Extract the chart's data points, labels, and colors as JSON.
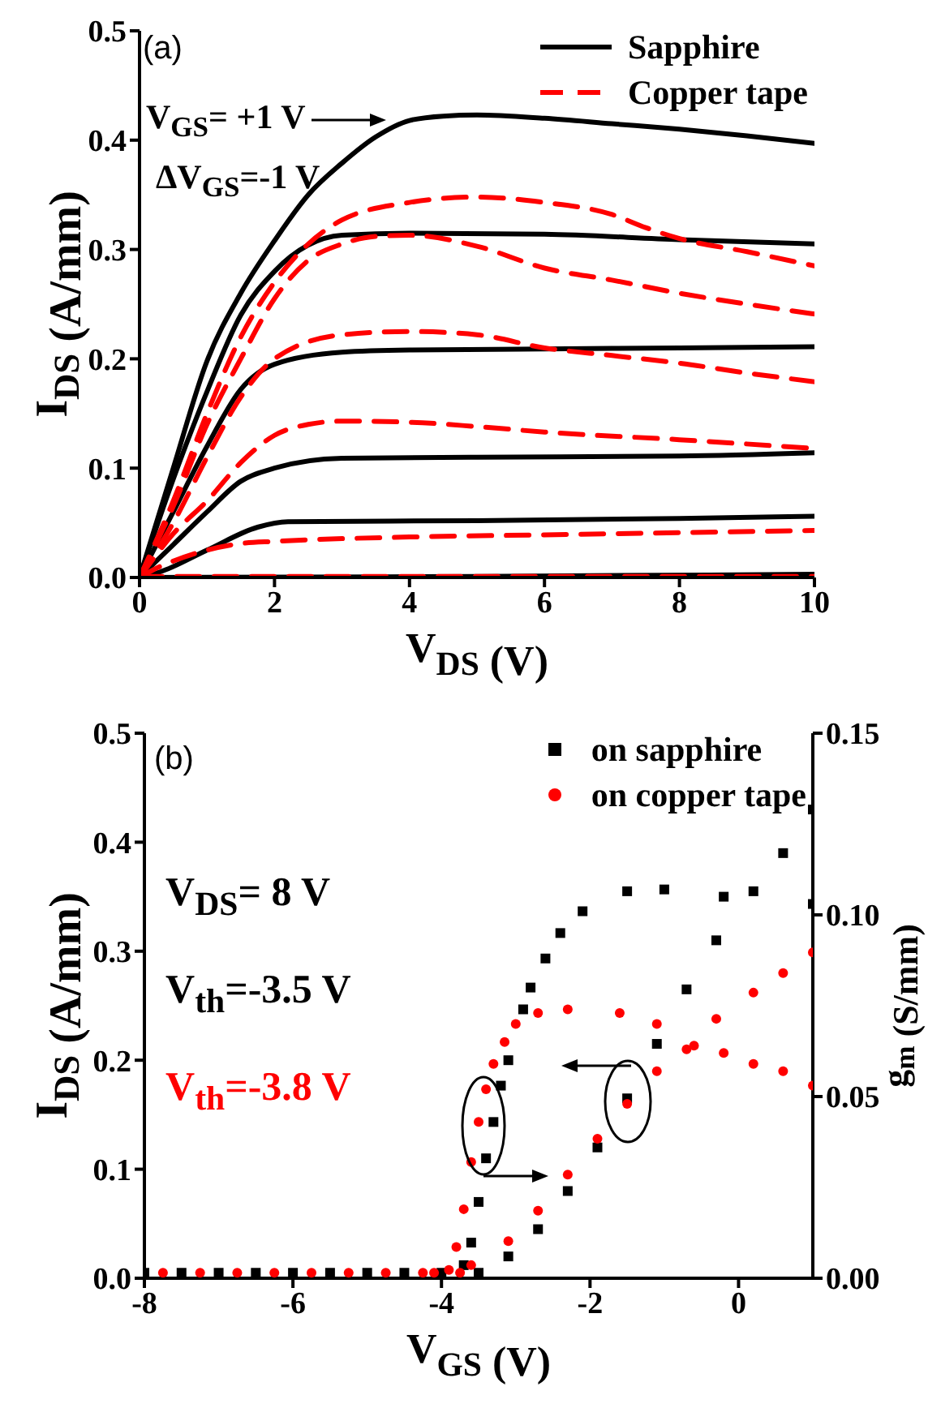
{
  "chart_data": [
    {
      "type": "line",
      "xlabel": "V$_{DS}$ (V)",
      "ylabel": "I$_{DS}$ (A/mm)",
      "xlim": [
        0,
        10
      ],
      "xticks": [
        0,
        2,
        4,
        6,
        8,
        10
      ],
      "ylim": [
        0,
        0.5
      ],
      "yticks": [
        {
          "value": 0,
          "label": "0.0"
        },
        0.1,
        0.2,
        0.3,
        0.4,
        0.5
      ],
      "legend": "top right",
      "marker": "none",
      "annotations": [
        "(a)",
        "V$_{GS}$= +1 V",
        "ΔV$_{GS}$=-1 V"
      ],
      "series": [
        {
          "name": "Sapphire",
          "color": "#000000",
          "line_style": "solid",
          "x": [
            0,
            0.5,
            1,
            1.5,
            2,
            2.5,
            3,
            3.5,
            4,
            4.5,
            5,
            6,
            7,
            8,
            9,
            10
          ],
          "values": [
            0,
            0.1,
            0.198,
            0.26,
            0.308,
            0.35,
            0.379,
            0.403,
            0.418,
            0.422,
            0.423,
            0.42,
            0.415,
            0.41,
            0.404,
            0.397
          ]
        },
        {
          "color": "#000000",
          "line_style": "solid",
          "x": [
            0,
            0.5,
            1,
            1.5,
            2,
            3,
            4,
            6,
            8,
            10
          ],
          "values": [
            0,
            0.09,
            0.17,
            0.24,
            0.28,
            0.313,
            0.315,
            0.314,
            0.309,
            0.305
          ]
        },
        {
          "color": "#000000",
          "line_style": "solid",
          "x": [
            0,
            0.5,
            1,
            1.5,
            2,
            3,
            4,
            6,
            8,
            10
          ],
          "values": [
            0,
            0.06,
            0.12,
            0.172,
            0.195,
            0.206,
            0.208,
            0.209,
            0.21,
            0.211
          ]
        },
        {
          "color": "#000000",
          "line_style": "solid",
          "x": [
            0,
            0.5,
            1,
            1.5,
            2,
            3,
            5,
            8,
            10
          ],
          "values": [
            0,
            0.03,
            0.06,
            0.088,
            0.1,
            0.109,
            0.11,
            0.111,
            0.114
          ]
        },
        {
          "color": "#000000",
          "line_style": "solid",
          "x": [
            0,
            0.3,
            1,
            1.75,
            2.2,
            5,
            8,
            10
          ],
          "values": [
            0,
            0.005,
            0.025,
            0.046,
            0.051,
            0.052,
            0.054,
            0.056
          ]
        },
        {
          "color": "#000000",
          "line_style": "solid",
          "x": [
            0,
            5,
            10
          ],
          "values": [
            0,
            0.001,
            0.003
          ]
        },
        {
          "name": "Copper tape",
          "color": "#ff0000",
          "line_style": "dashed",
          "x": [
            0,
            0.5,
            1,
            1.5,
            2,
            2.5,
            3,
            4,
            5,
            6,
            7,
            7.5,
            8,
            9,
            10
          ],
          "values": [
            0,
            0.07,
            0.15,
            0.22,
            0.27,
            0.305,
            0.327,
            0.343,
            0.348,
            0.343,
            0.332,
            0.32,
            0.31,
            0.298,
            0.285
          ]
        },
        {
          "color": "#ff0000",
          "line_style": "dashed",
          "x": [
            0,
            0.5,
            1,
            1.5,
            2,
            2.5,
            3,
            3.5,
            4,
            5,
            6,
            7,
            8,
            9,
            10
          ],
          "values": [
            0,
            0.065,
            0.14,
            0.2,
            0.255,
            0.29,
            0.305,
            0.312,
            0.313,
            0.303,
            0.283,
            0.272,
            0.26,
            0.25,
            0.241
          ]
        },
        {
          "color": "#ff0000",
          "line_style": "dashed",
          "x": [
            0,
            0.5,
            1,
            1.5,
            2,
            3,
            4,
            5,
            6,
            7,
            8,
            9,
            10
          ],
          "values": [
            0,
            0.05,
            0.11,
            0.165,
            0.2,
            0.222,
            0.225,
            0.222,
            0.21,
            0.203,
            0.196,
            0.187,
            0.179
          ]
        },
        {
          "color": "#ff0000",
          "line_style": "dashed",
          "x": [
            0,
            0.5,
            1,
            1.5,
            2,
            2.5,
            3,
            4,
            5,
            6,
            8,
            10
          ],
          "values": [
            0,
            0.04,
            0.07,
            0.105,
            0.13,
            0.14,
            0.143,
            0.142,
            0.138,
            0.133,
            0.126,
            0.118
          ]
        },
        {
          "color": "#ff0000",
          "line_style": "dashed",
          "x": [
            0,
            0.3,
            0.5,
            1,
            1.5,
            2,
            4,
            6,
            8,
            10
          ],
          "values": [
            0,
            0.01,
            0.015,
            0.025,
            0.031,
            0.033,
            0.037,
            0.039,
            0.041,
            0.043
          ]
        },
        {
          "color": "#ff0000",
          "line_style": "dashed",
          "x": [
            0,
            10
          ],
          "values": [
            0.001,
            0.001
          ]
        }
      ]
    },
    {
      "type": "scatter",
      "xlabel": "V$_{GS}$ (V)",
      "ylabel": "I$_{DS}$ (A/mm)",
      "y2label": "g$_{m}$ (S/mm)",
      "xlim": [
        -8,
        1
      ],
      "xticks": [
        -8,
        -6,
        -4,
        -2,
        0
      ],
      "ylim": [
        0,
        0.5
      ],
      "yticks": [
        {
          "value": 0,
          "label": "0.0"
        },
        0.1,
        0.2,
        0.3,
        0.4,
        0.5
      ],
      "y2lim": [
        0,
        0.15
      ],
      "y2ticks": [
        {
          "value": 0,
          "label": "0.00"
        },
        {
          "value": 0.05,
          "label": "0.05"
        },
        {
          "value": 0.1,
          "label": "0.10"
        },
        {
          "value": 0.15,
          "label": "0.15"
        }
      ],
      "legend": "top right",
      "annotations": [
        "(b)",
        "V$_{DS}$= 8 V",
        "V$_{th}$=-3.5 V",
        "V$_{th}$=-3.8 V"
      ],
      "series": [
        {
          "name": "on sapphire",
          "color": "#000000",
          "marker": "square",
          "x": [
            -8,
            -7.5,
            -7,
            -6.5,
            -6,
            -5.5,
            -5,
            -4.5,
            -4,
            -3.5,
            -3.1,
            -2.7,
            -2.3,
            -1.9,
            -1.5,
            -1.1,
            -0.7,
            -0.3,
            0.2,
            0.6,
            1.0
          ],
          "values": [
            0.005,
            0.005,
            0.005,
            0.005,
            0.005,
            0.005,
            0.005,
            0.005,
            0.005,
            0.005,
            0.02,
            0.045,
            0.08,
            0.12,
            0.165,
            0.215,
            0.265,
            0.31,
            0.355,
            0.39,
            0.43
          ]
        },
        {
          "color": "#000000",
          "marker": "square",
          "axis": "y2",
          "x": [
            -3.7,
            -3.6,
            -3.5,
            -3.4,
            -3.3,
            -3.2,
            -3.1,
            -2.9,
            -2.8,
            -2.6,
            -2.4,
            -2.1,
            -1.5,
            -1.0,
            -0.2,
            1.0
          ],
          "values": [
            0.0036,
            0.0098,
            0.021,
            0.033,
            0.043,
            0.053,
            0.06,
            0.074,
            0.08,
            0.088,
            0.095,
            0.101,
            0.1065,
            0.107,
            0.105,
            0.103
          ]
        },
        {
          "name": "on copper tape",
          "color": "#ff0000",
          "marker": "circle",
          "x": [
            -7.75,
            -7.25,
            -6.75,
            -6.25,
            -5.75,
            -5.25,
            -4.75,
            -4.25,
            -3.75,
            -3.6,
            -3.1,
            -2.7,
            -2.3,
            -1.9,
            -1.5,
            -1.1,
            -0.7,
            -0.3,
            0.2,
            0.6,
            1.0
          ],
          "values": [
            0.005,
            0.005,
            0.005,
            0.005,
            0.005,
            0.005,
            0.005,
            0.005,
            0.005,
            0.012,
            0.034,
            0.062,
            0.095,
            0.128,
            0.16,
            0.19,
            0.21,
            0.238,
            0.262,
            0.28,
            0.299
          ]
        },
        {
          "color": "#ff0000",
          "marker": "circle",
          "axis": "y2",
          "x": [
            -4.1,
            -3.9,
            -3.8,
            -3.7,
            -3.6,
            -3.5,
            -3.4,
            -3.3,
            -3.15,
            -3.0,
            -2.7,
            -2.3,
            -1.6,
            -1.1,
            -0.6,
            -0.2,
            0.2,
            0.6,
            1.0
          ],
          "values": [
            0.0015,
            0.0023,
            0.0086,
            0.019,
            0.032,
            0.043,
            0.052,
            0.059,
            0.065,
            0.07,
            0.073,
            0.074,
            0.073,
            0.07,
            0.064,
            0.062,
            0.059,
            0.057,
            0.053
          ]
        }
      ]
    }
  ]
}
